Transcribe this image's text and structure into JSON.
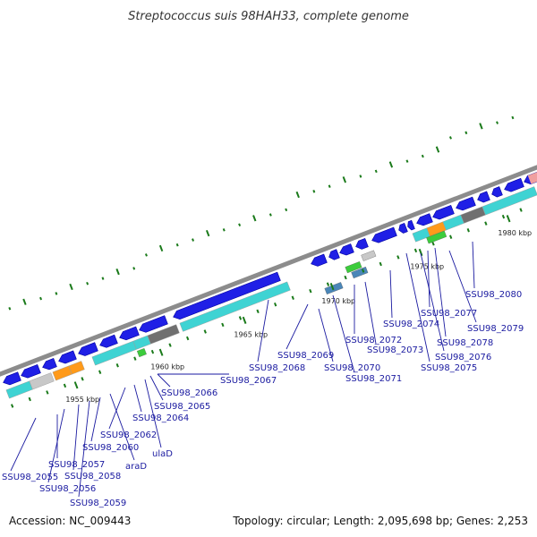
{
  "title": "Streptococcus suis 98HAH33, complete genome",
  "footer": {
    "accession": "Accession: NC_009443",
    "summary": "Topology: circular; Length: 2,095,698 bp; Genes: 2,253"
  },
  "ticks": [
    "1955 kbp",
    "1960 kbp",
    "1965 kbp",
    "1970 kbp",
    "1975 kbp",
    "1980 kbp"
  ],
  "gene_labels": [
    "SSU98_2055",
    "SSU98_2056",
    "SSU98_2057",
    "SSU98_2058",
    "SSU98_2059",
    "SSU98_2060",
    "araD",
    "ulaD",
    "SSU98_2062",
    "SSU98_2064",
    "SSU98_2065",
    "SSU98_2066",
    "SSU98_2067",
    "SSU98_2068",
    "SSU98_2069",
    "SSU98_2070",
    "SSU98_2071",
    "SSU98_2072",
    "SSU98_2073",
    "SSU98_2074",
    "SSU98_2075",
    "SSU98_2076",
    "SSU98_2077",
    "SSU98_2078",
    "SSU98_2079",
    "SSU98_2080"
  ],
  "colors": {
    "backbone": "#8c8c8c",
    "cds": "#1f1fe6",
    "cds_edge": "#0000a0",
    "gene_bar": "#3fd3d3",
    "rna_orange": "#ff9a1a",
    "dark_gray": "#707070",
    "light_gray": "#c8c8c8",
    "green": "#3ccc3c",
    "steel_blue": "#4a86b8",
    "pink": "#f0a0a0",
    "gc_tick": "#1a7a1a",
    "label": "#1a1aa0"
  }
}
